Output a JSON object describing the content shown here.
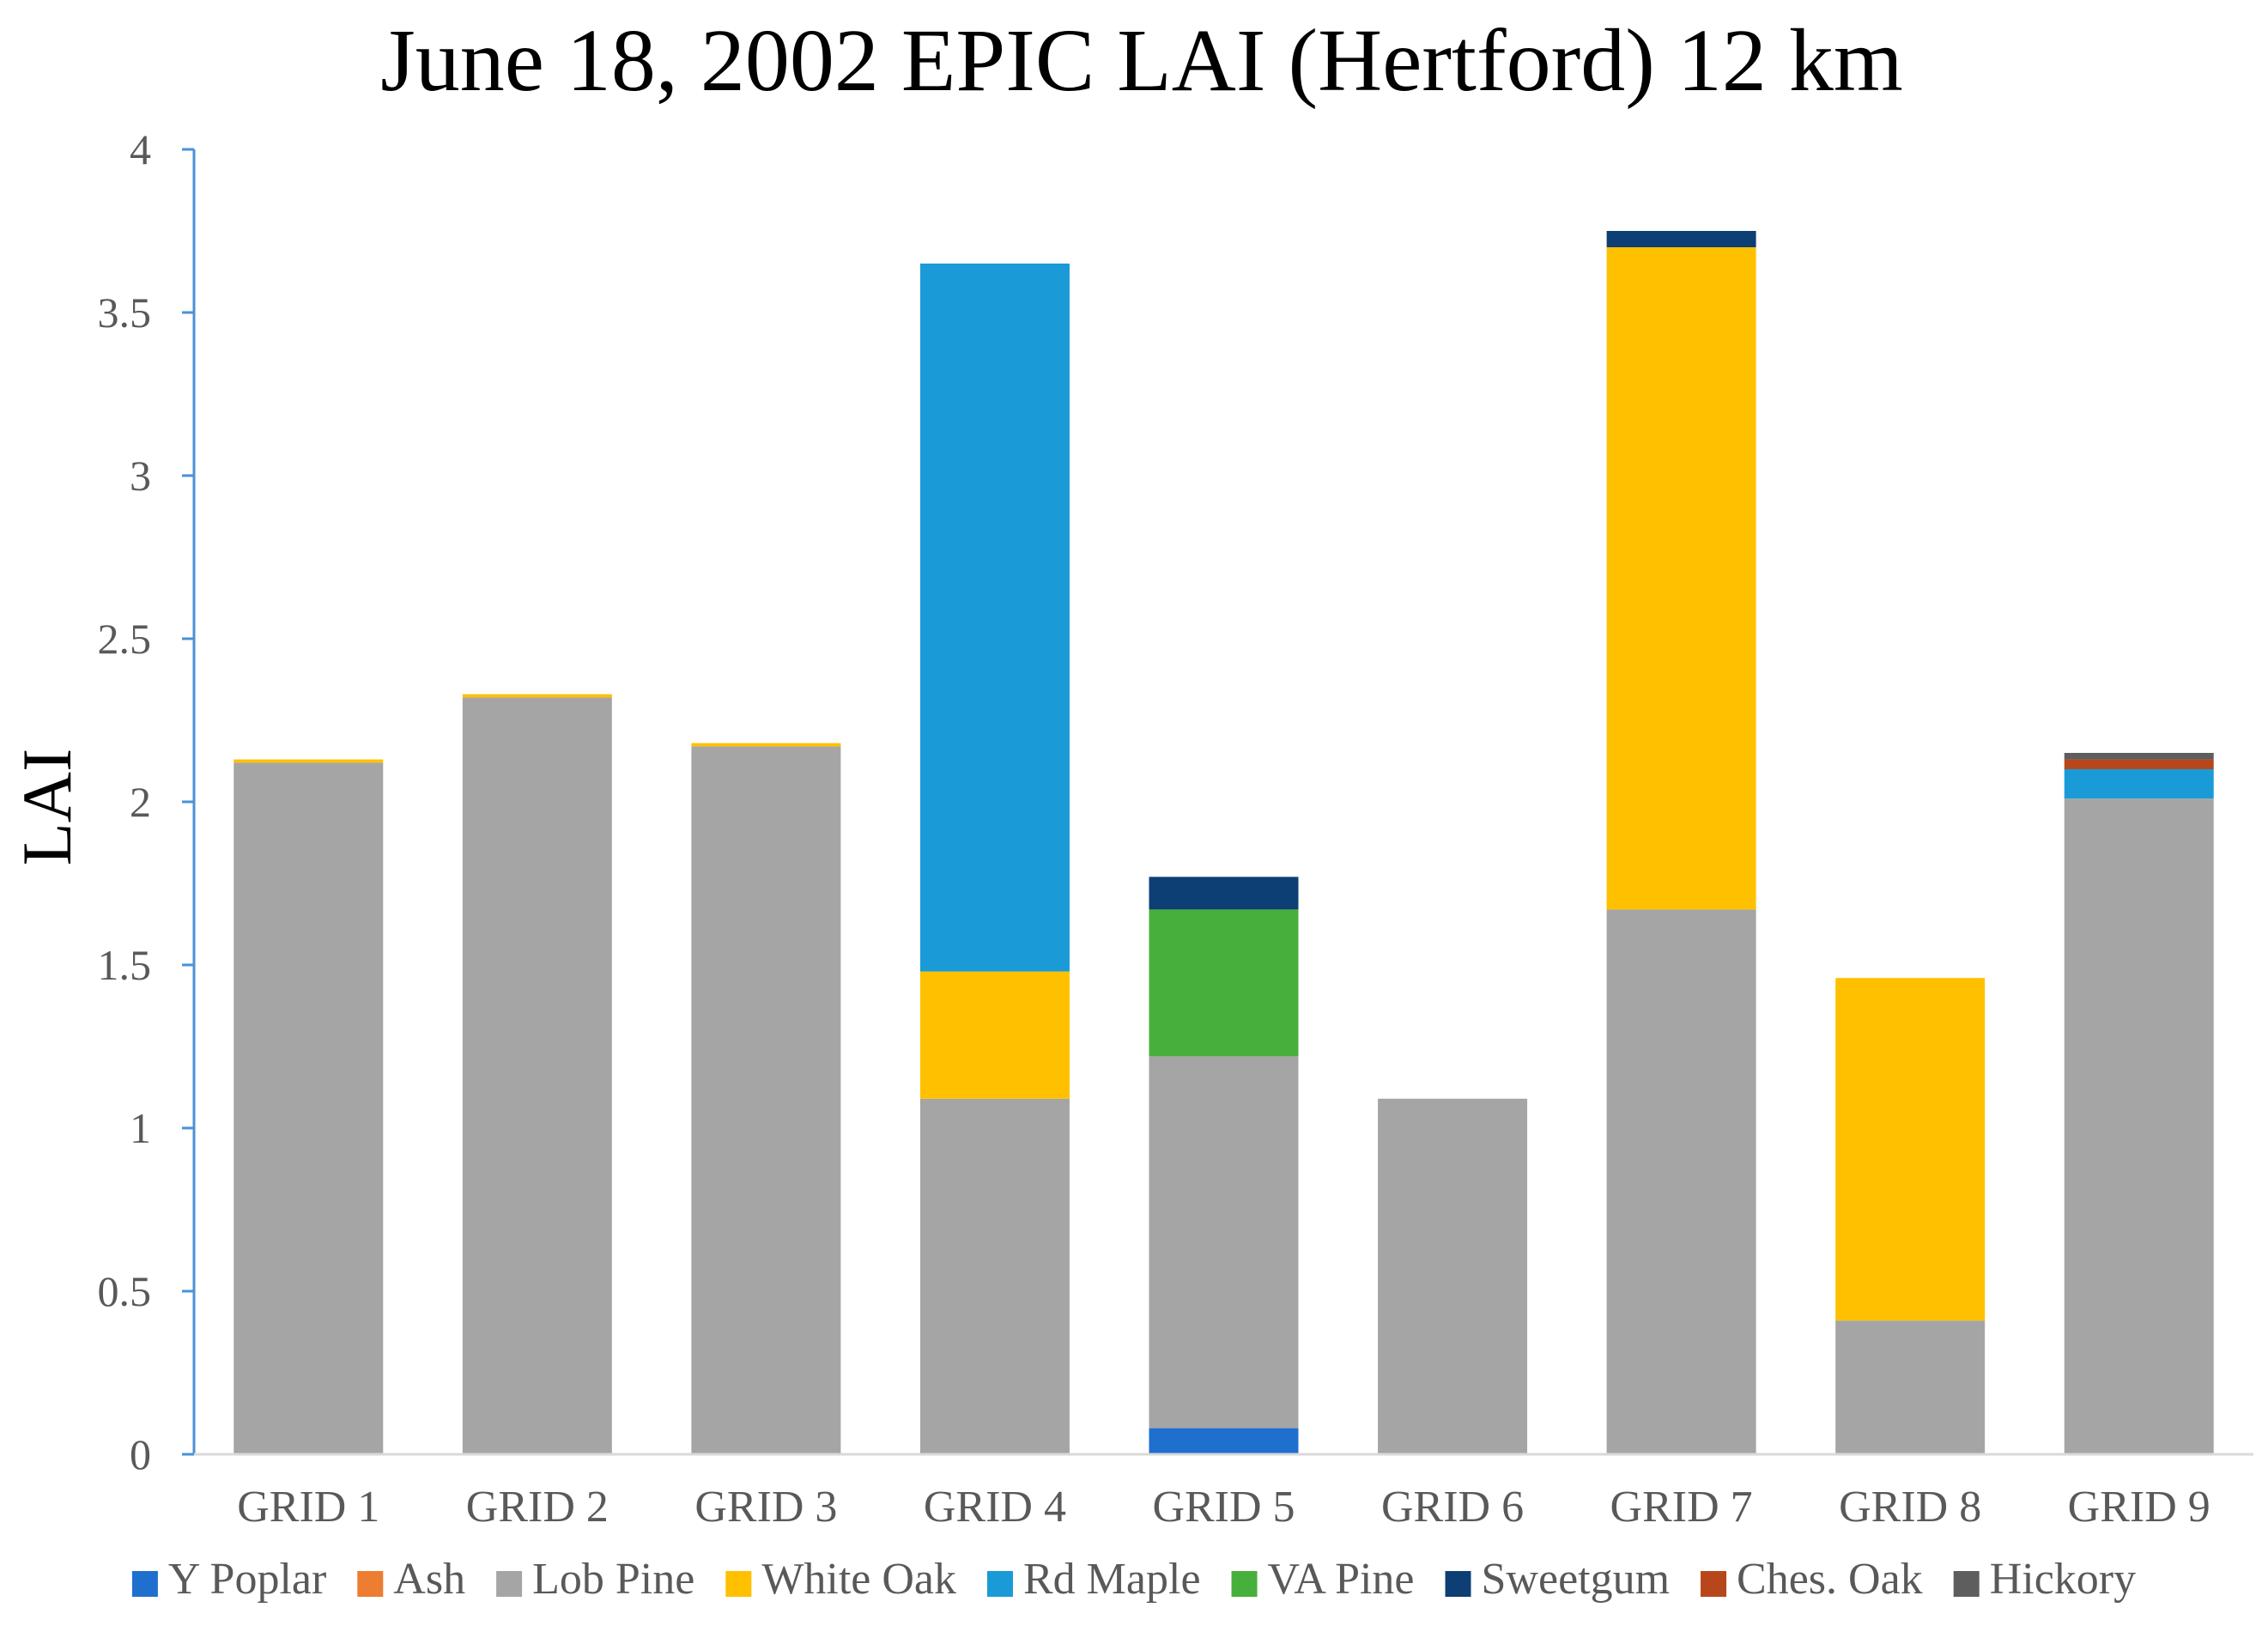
{
  "chart_data": {
    "type": "bar",
    "stacked": true,
    "title": "June 18, 2002 EPIC LAI (Hertford) 12 km",
    "xlabel": "",
    "ylabel": "LAI",
    "ylim": [
      0,
      4
    ],
    "yticks": [
      0,
      0.5,
      1,
      1.5,
      2,
      2.5,
      3,
      3.5,
      4
    ],
    "ytick_labels": [
      "0",
      "0.5",
      "1",
      "1.5",
      "2",
      "2.5",
      "3",
      "3.5",
      "4"
    ],
    "grid": false,
    "legend_position": "bottom",
    "categories": [
      "GRID 1",
      "GRID 2",
      "GRID 3",
      "GRID 4",
      "GRID 5",
      "GRID 6",
      "GRID 7",
      "GRID 8",
      "GRID 9"
    ],
    "series": [
      {
        "name": "Y Poplar",
        "color": "#1F6FCF",
        "values": [
          0,
          0,
          0,
          0,
          0.08,
          0,
          0,
          0,
          0
        ]
      },
      {
        "name": "Ash",
        "color": "#ED7D31",
        "values": [
          0,
          0,
          0,
          0,
          0,
          0,
          0,
          0,
          0
        ]
      },
      {
        "name": "Lob Pine",
        "color": "#A5A5A5",
        "values": [
          2.12,
          2.32,
          2.17,
          1.09,
          1.14,
          1.09,
          1.67,
          0.41,
          2.01
        ]
      },
      {
        "name": "White Oak",
        "color": "#FFC000",
        "values": [
          0.01,
          0.01,
          0.01,
          0.39,
          0,
          0,
          2.03,
          1.05,
          0
        ]
      },
      {
        "name": "Rd Maple",
        "color": "#1A9BD7",
        "values": [
          0,
          0,
          0,
          2.17,
          0,
          0,
          0,
          0,
          0.09
        ]
      },
      {
        "name": "VA Pine",
        "color": "#47AF3C",
        "values": [
          0,
          0,
          0,
          0,
          0.45,
          0,
          0,
          0,
          0
        ]
      },
      {
        "name": "Sweetgum",
        "color": "#0E3F74",
        "values": [
          0,
          0,
          0,
          0,
          0.1,
          0,
          0.05,
          0,
          0
        ]
      },
      {
        "name": "Ches. Oak",
        "color": "#B7471A",
        "values": [
          0,
          0,
          0,
          0,
          0,
          0,
          0,
          0,
          0.03
        ]
      },
      {
        "name": "Hickory",
        "color": "#5E5E5E",
        "values": [
          0,
          0,
          0,
          0,
          0,
          0,
          0,
          0,
          0.02
        ]
      }
    ]
  }
}
